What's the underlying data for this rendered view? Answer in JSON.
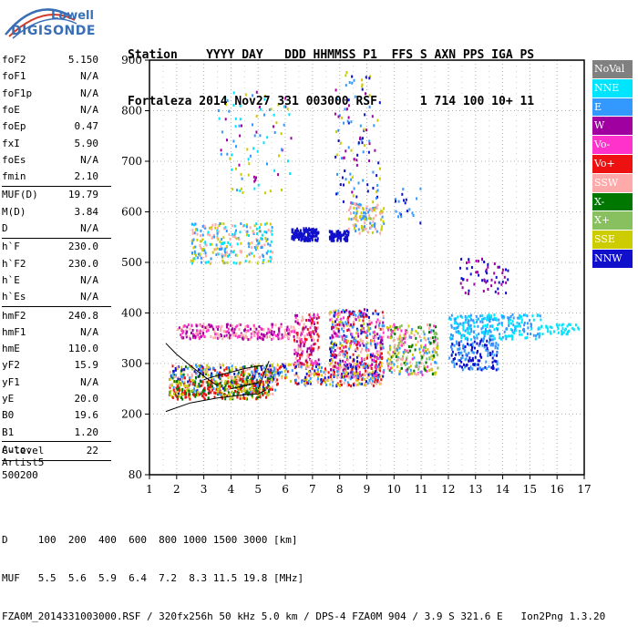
{
  "logo": {
    "line1": "Lowell",
    "line2": "DIGISONDE"
  },
  "header": {
    "line1": "Station    YYYY DAY   DDD HHMMSS P1  FFS S AXN PPS IGA PS",
    "line2": "Fortaleza 2014 Nov27 331 003000 RSF      1 714 100 10+ 11"
  },
  "parameters": {
    "group1": [
      {
        "name": "foF2",
        "value": "5.150"
      },
      {
        "name": "foF1",
        "value": "N/A"
      },
      {
        "name": "foF1p",
        "value": "N/A"
      },
      {
        "name": "foE",
        "value": "N/A"
      },
      {
        "name": "foEp",
        "value": "0.47"
      },
      {
        "name": "fxI",
        "value": "5.90"
      },
      {
        "name": "foEs",
        "value": "N/A"
      },
      {
        "name": "fmin",
        "value": "2.10"
      }
    ],
    "group2": [
      {
        "name": "MUF(D)",
        "value": "19.79"
      },
      {
        "name": "M(D)",
        "value": "3.84"
      },
      {
        "name": "D",
        "value": "N/A"
      }
    ],
    "group3": [
      {
        "name": "h`F",
        "value": "230.0"
      },
      {
        "name": "h`F2",
        "value": "230.0"
      },
      {
        "name": "h`E",
        "value": "N/A"
      },
      {
        "name": "h`Es",
        "value": "N/A"
      }
    ],
    "group4": [
      {
        "name": "hmF2",
        "value": "240.8"
      },
      {
        "name": "hmF1",
        "value": "N/A"
      },
      {
        "name": "hmE",
        "value": "110.0"
      },
      {
        "name": "yF2",
        "value": "15.9"
      },
      {
        "name": "yF1",
        "value": "N/A"
      },
      {
        "name": "yE",
        "value": "20.0"
      },
      {
        "name": "B0",
        "value": "19.6"
      },
      {
        "name": "B1",
        "value": "1.20"
      }
    ],
    "group5": [
      {
        "name": "C-level",
        "value": "22"
      }
    ]
  },
  "auto": [
    "Auto:",
    "Artist5",
    "500200"
  ],
  "legend": [
    {
      "label": "NoVal",
      "color": "#808080"
    },
    {
      "label": "NNE",
      "color": "#00e5ff"
    },
    {
      "label": "E",
      "color": "#3399ff"
    },
    {
      "label": "W",
      "color": "#a000a0"
    },
    {
      "label": "Vo-",
      "color": "#ff33cc"
    },
    {
      "label": "Vo+",
      "color": "#ee1111"
    },
    {
      "label": "SSW",
      "color": "#ffaaaa"
    },
    {
      "label": "X-",
      "color": "#007700"
    },
    {
      "label": "X+",
      "color": "#88c060"
    },
    {
      "label": "SSE",
      "color": "#cccc00"
    },
    {
      "label": "NNW",
      "color": "#1010cc"
    }
  ],
  "footer": {
    "line1": "D     100  200  400  600  800 1000 1500 3000 [km]",
    "line2": "MUF   5.5  5.6  5.9  6.4  7.2  8.3 11.5 19.8 [MHz]",
    "line3": "FZA0M_2014331003000.RSF / 320fx256h 50 kHz 5.0 km / DPS-4 FZA0M 904 / 3.9 S 321.6 E   Ion2Png 1.3.20"
  },
  "chart_data": {
    "type": "scatter",
    "xlim": [
      1,
      17
    ],
    "ylim": [
      80,
      900
    ],
    "xticks": [
      1,
      2,
      3,
      4,
      5,
      6,
      7,
      8,
      9,
      10,
      11,
      12,
      13,
      14,
      15,
      16,
      17
    ],
    "yticks": [
      80,
      200,
      300,
      400,
      500,
      600,
      700,
      800,
      900
    ],
    "grid": true,
    "clusters": [
      {
        "x": [
          1.7,
          5.6
        ],
        "y": [
          240,
          300
        ],
        "colors": [
          "#1010cc",
          "#cccc00",
          "#ffaaaa",
          "#ee1111",
          "#3399ff",
          "#007700"
        ],
        "n": 500
      },
      {
        "x": [
          1.8,
          5.4
        ],
        "y": [
          232,
          268
        ],
        "colors": [
          "#ee1111",
          "#cccc00",
          "#007700"
        ],
        "n": 220
      },
      {
        "x": [
          5.3,
          9.5
        ],
        "y": [
          258,
          302
        ],
        "colors": [
          "#cccc00",
          "#3399ff",
          "#ffaaaa",
          "#ee1111",
          "#1010cc"
        ],
        "n": 300
      },
      {
        "x": [
          2.0,
          6.3
        ],
        "y": [
          350,
          380
        ],
        "colors": [
          "#a000a0",
          "#ff33cc",
          "#ffaaaa"
        ],
        "n": 260
      },
      {
        "x": [
          6.3,
          7.2
        ],
        "y": [
          300,
          400
        ],
        "colors": [
          "#a000a0",
          "#ff33cc",
          "#ffaaaa",
          "#ee1111"
        ],
        "n": 160
      },
      {
        "x": [
          7.6,
          9.6
        ],
        "y": [
          270,
          410
        ],
        "colors": [
          "#a000a0",
          "#ff33cc",
          "#1010cc",
          "#cccc00",
          "#ffaaaa",
          "#ee1111",
          "#3399ff"
        ],
        "n": 500
      },
      {
        "x": [
          9.7,
          11.6
        ],
        "y": [
          280,
          380
        ],
        "colors": [
          "#ffaaaa",
          "#cccc00",
          "#3399ff",
          "#ff33cc",
          "#007700",
          "#88c060"
        ],
        "n": 280
      },
      {
        "x": [
          12.0,
          15.4
        ],
        "y": [
          350,
          400
        ],
        "colors": [
          "#00e5ff",
          "#3399ff"
        ],
        "n": 260
      },
      {
        "x": [
          15.4,
          16.8
        ],
        "y": [
          360,
          380
        ],
        "colors": [
          "#00e5ff"
        ],
        "n": 40
      },
      {
        "x": [
          12.0,
          13.8
        ],
        "y": [
          290,
          350
        ],
        "colors": [
          "#1010cc",
          "#3399ff"
        ],
        "n": 160
      },
      {
        "x": [
          12.4,
          14.2
        ],
        "y": [
          440,
          510
        ],
        "colors": [
          "#1010cc",
          "#a000a0"
        ],
        "n": 60
      },
      {
        "x": [
          2.5,
          5.5
        ],
        "y": [
          500,
          580
        ],
        "colors": [
          "#3399ff",
          "#00e5ff",
          "#cccc00",
          "#ffaaaa"
        ],
        "n": 250
      },
      {
        "x": [
          6.2,
          7.2
        ],
        "y": [
          545,
          570
        ],
        "colors": [
          "#1010cc"
        ],
        "n": 140
      },
      {
        "x": [
          7.6,
          8.3
        ],
        "y": [
          545,
          565
        ],
        "colors": [
          "#1010cc"
        ],
        "n": 90
      },
      {
        "x": [
          8.3,
          9.6
        ],
        "y": [
          560,
          620
        ],
        "colors": [
          "#cccc00",
          "#ffaaaa",
          "#3399ff"
        ],
        "n": 120
      },
      {
        "x": [
          7.8,
          9.5
        ],
        "y": [
          620,
          880
        ],
        "colors": [
          "#a000a0",
          "#1010cc",
          "#cccc00",
          "#3399ff"
        ],
        "n": 110
      },
      {
        "x": [
          3.5,
          6.2
        ],
        "y": [
          640,
          840
        ],
        "colors": [
          "#3399ff",
          "#a000a0",
          "#00e5ff",
          "#cccc00"
        ],
        "n": 90
      },
      {
        "x": [
          10.0,
          11.0
        ],
        "y": [
          580,
          650
        ],
        "colors": [
          "#3399ff",
          "#1010cc"
        ],
        "n": 20
      }
    ],
    "traces": [
      {
        "x": [
          1.6,
          2.5,
          3.5,
          4.5,
          5.0,
          5.3
        ],
        "y": [
          205,
          222,
          232,
          238,
          240,
          248
        ]
      },
      {
        "x": [
          1.6,
          2.0,
          2.5,
          3.0,
          3.5
        ],
        "y": [
          340,
          318,
          296,
          275,
          256
        ]
      },
      {
        "x": [
          3.0,
          3.5,
          4.0,
          4.5,
          5.0,
          5.2
        ],
        "y": [
          268,
          276,
          283,
          290,
          295,
          296
        ]
      },
      {
        "x": [
          5.0,
          5.1,
          5.2,
          5.3,
          5.4
        ],
        "y": [
          250,
          262,
          278,
          292,
          305
        ]
      },
      {
        "x": [
          4.0,
          4.5,
          5.0
        ],
        "y": [
          250,
          256,
          262
        ]
      }
    ]
  }
}
